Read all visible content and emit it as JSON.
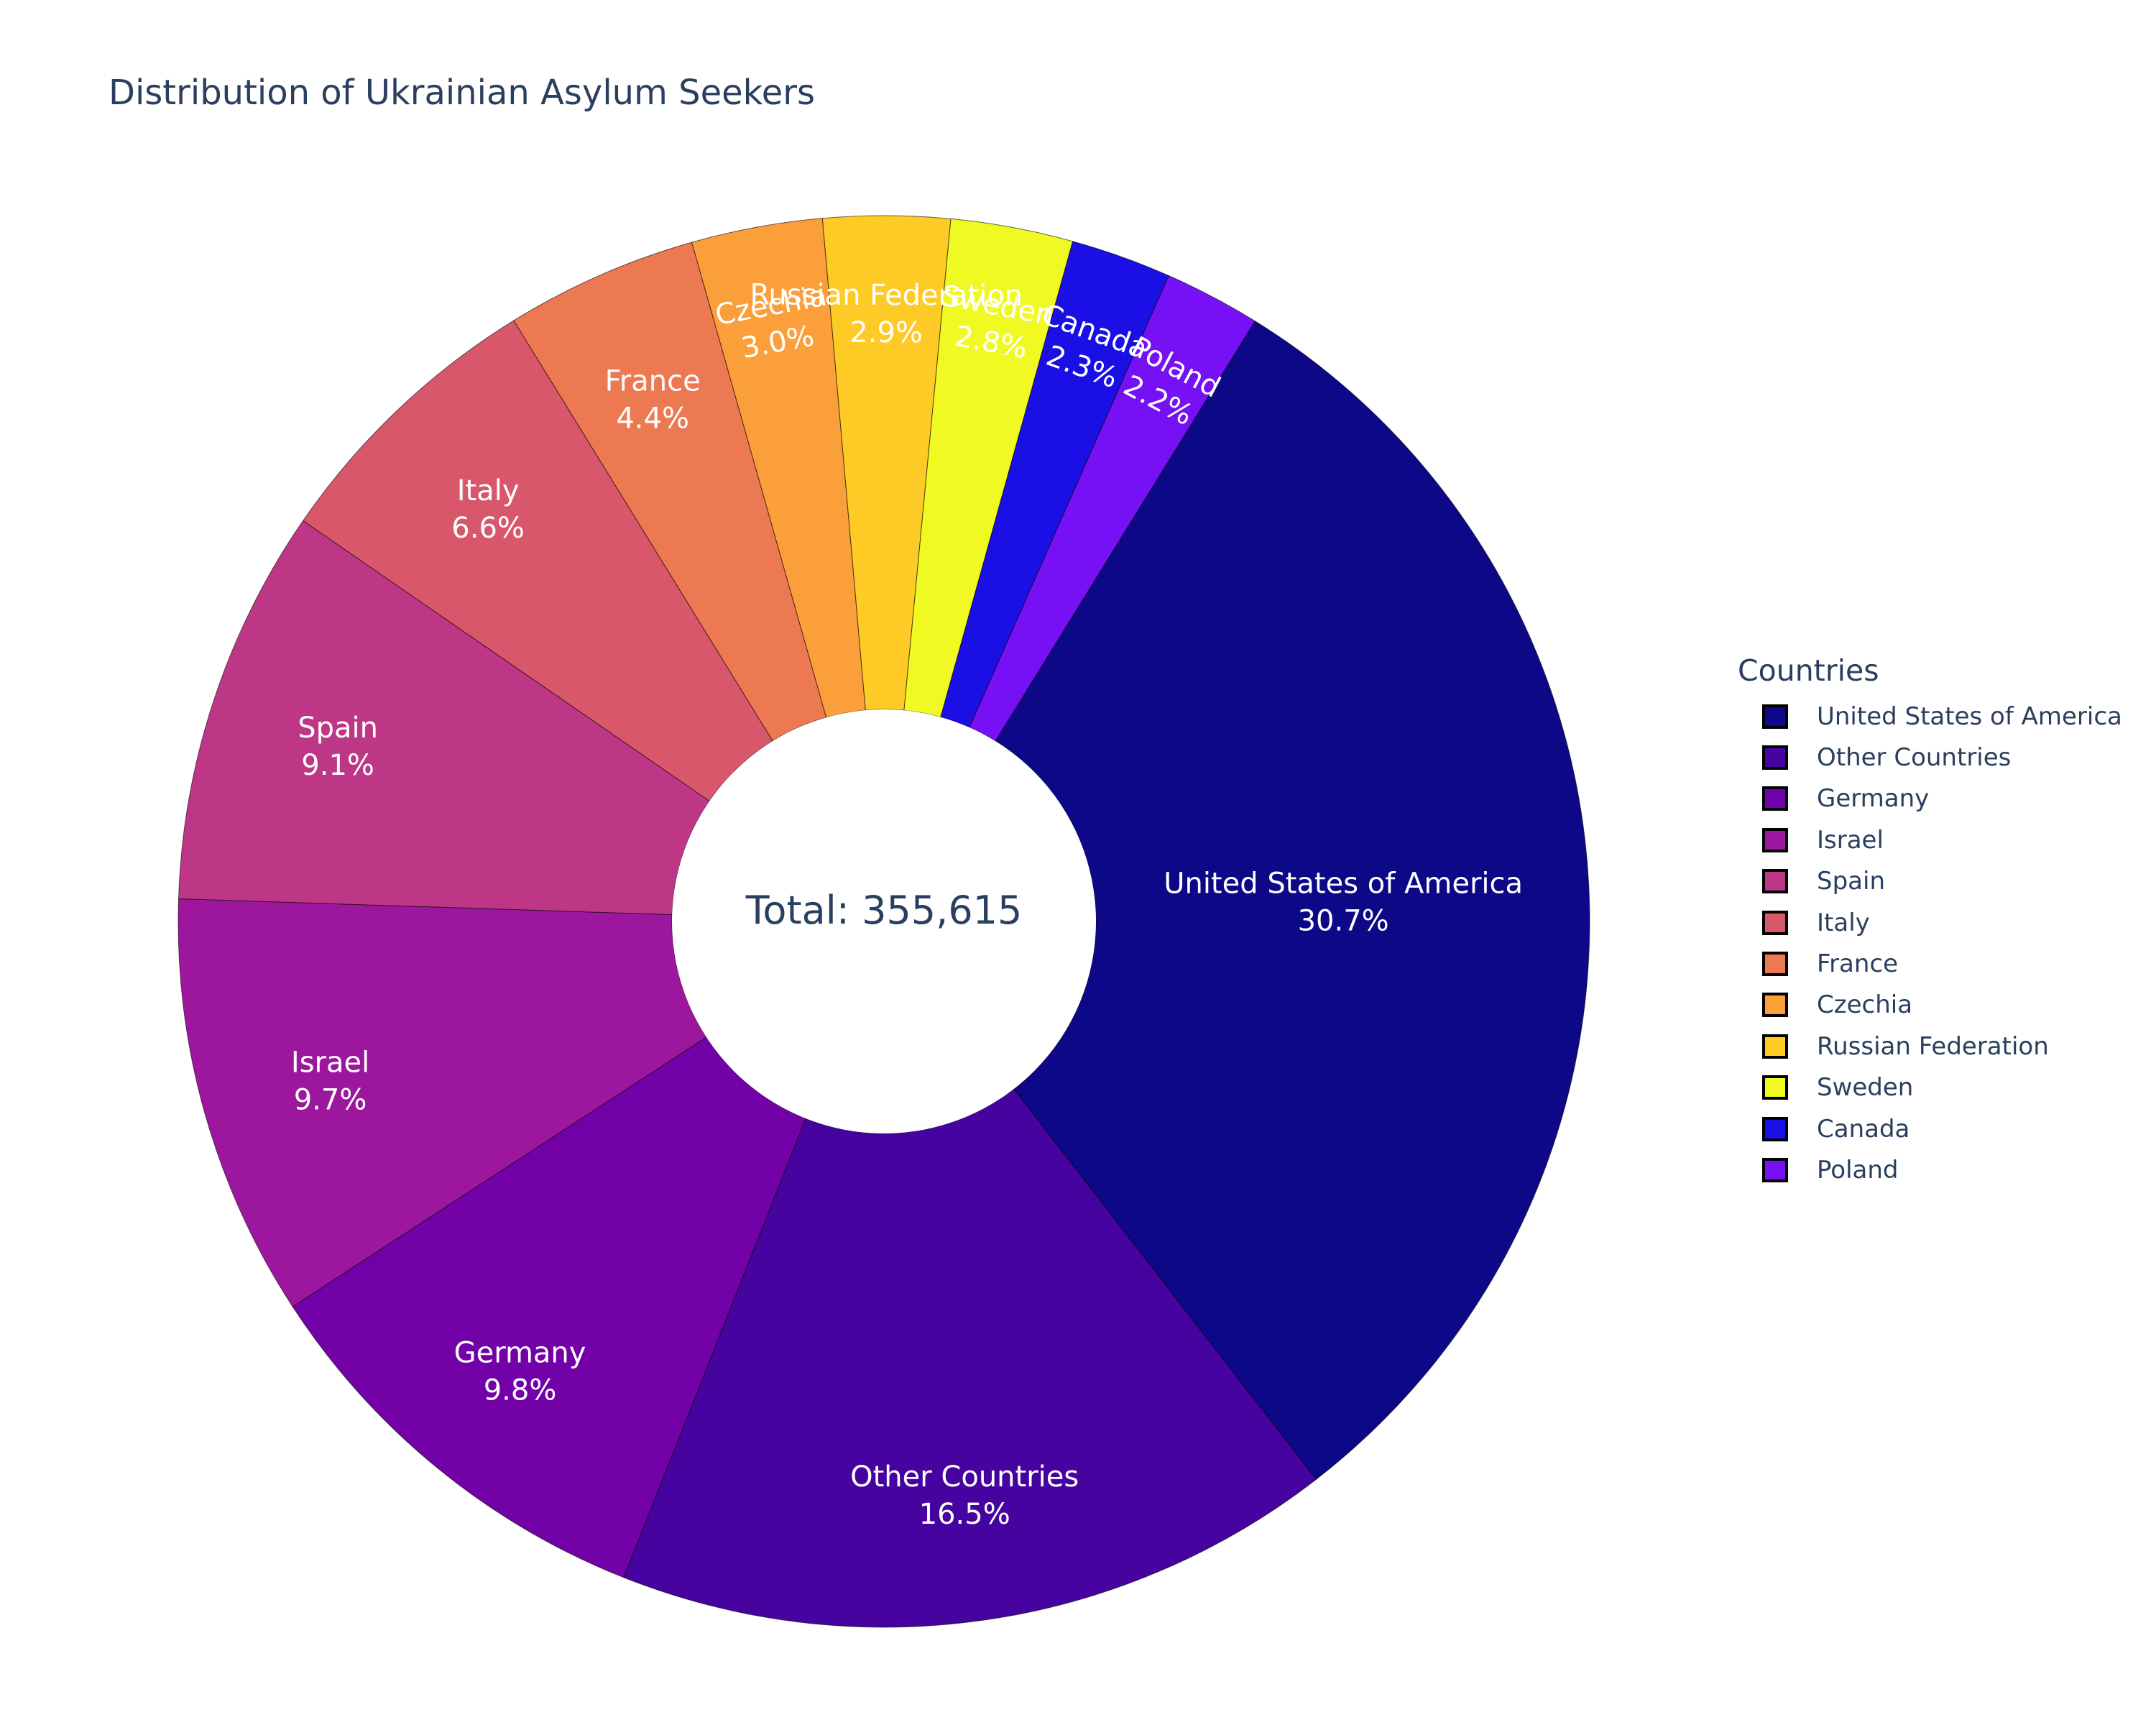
{
  "chart_data": {
    "type": "pie",
    "title": "Distribution of Ukrainian Asylum Seekers",
    "center_label": "Total: 355,615",
    "total": 355615,
    "legend_title": "Countries",
    "legend_position": "right",
    "hole": true,
    "slices": [
      {
        "label": "United States of America",
        "percent": 30.7,
        "percent_label": "30.7%",
        "color": "#0d0887"
      },
      {
        "label": "Other Countries",
        "percent": 16.5,
        "percent_label": "16.5%",
        "color": "#46039f"
      },
      {
        "label": "Germany",
        "percent": 9.8,
        "percent_label": "9.8%",
        "color": "#7201a8"
      },
      {
        "label": "Israel",
        "percent": 9.7,
        "percent_label": "9.7%",
        "color": "#9c179e"
      },
      {
        "label": "Spain",
        "percent": 9.1,
        "percent_label": "9.1%",
        "color": "#bd3786"
      },
      {
        "label": "Italy",
        "percent": 6.6,
        "percent_label": "6.6%",
        "color": "#d8576b"
      },
      {
        "label": "France",
        "percent": 4.4,
        "percent_label": "4.4%",
        "color": "#ed7953"
      },
      {
        "label": "Czechia",
        "percent": 3.0,
        "percent_label": "3.0%",
        "color": "#fb9f3a"
      },
      {
        "label": "Russian Federation",
        "percent": 2.9,
        "percent_label": "2.9%",
        "color": "#fdca26"
      },
      {
        "label": "Sweden",
        "percent": 2.8,
        "percent_label": "2.8%",
        "color": "#f0f921"
      },
      {
        "label": "Canada",
        "percent": 2.3,
        "percent_label": "2.3%",
        "color": "#1a10e6"
      },
      {
        "label": "Poland",
        "percent": 2.2,
        "percent_label": "2.2%",
        "color": "#7711f5"
      }
    ]
  }
}
